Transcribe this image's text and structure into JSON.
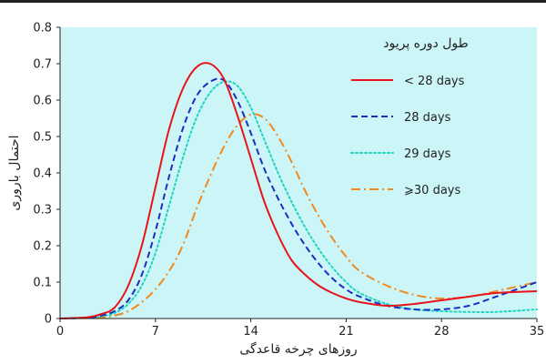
{
  "chart_data": {
    "type": "line",
    "title": "",
    "xlabel": "روزهای چرخه قاعدگی",
    "ylabel": "احتمال باروری",
    "xlim": [
      0,
      35
    ],
    "ylim": [
      0,
      0.8
    ],
    "x_ticks": [
      0,
      7,
      14,
      21,
      28,
      35
    ],
    "x_tick_labels": [
      "0",
      "7",
      "14",
      "21",
      "28",
      "35"
    ],
    "y_ticks": [
      0,
      0.1,
      0.2,
      0.3,
      0.4,
      0.5,
      0.6,
      0.7,
      0.8
    ],
    "y_tick_labels": [
      "0",
      "0.1",
      "0.2",
      "0.3",
      "0.4",
      "0.5",
      "0.6",
      "0.7",
      "0.8"
    ],
    "grid": false,
    "background_color": "#ccf5f8",
    "legend": {
      "title": "طول دوره پریود",
      "placement": "top-right"
    },
    "series": [
      {
        "name": "< 28 days",
        "color": "#e8141b",
        "dash": "solid",
        "x": [
          0,
          2,
          3,
          4,
          5,
          6,
          7,
          8,
          9,
          10,
          11,
          12,
          13,
          14,
          15,
          16,
          17,
          18,
          19,
          20,
          21,
          22,
          24,
          26,
          28,
          30,
          32,
          35
        ],
        "y": [
          0,
          0.003,
          0.012,
          0.03,
          0.09,
          0.2,
          0.36,
          0.52,
          0.63,
          0.69,
          0.7,
          0.66,
          0.56,
          0.44,
          0.32,
          0.23,
          0.16,
          0.12,
          0.09,
          0.07,
          0.055,
          0.045,
          0.035,
          0.04,
          0.05,
          0.06,
          0.07,
          0.075
        ]
      },
      {
        "name": "28 days",
        "color": "#1a2fc2",
        "dash": "dashed",
        "x": [
          0,
          2,
          3,
          4,
          5,
          6,
          7,
          8,
          9,
          10,
          11,
          12,
          13,
          14,
          15,
          16,
          17,
          18,
          19,
          20,
          21,
          22,
          24,
          26,
          28,
          30,
          32,
          35
        ],
        "y": [
          0,
          0.002,
          0.008,
          0.02,
          0.05,
          0.12,
          0.24,
          0.39,
          0.52,
          0.61,
          0.65,
          0.655,
          0.6,
          0.51,
          0.41,
          0.33,
          0.26,
          0.2,
          0.15,
          0.11,
          0.08,
          0.06,
          0.035,
          0.025,
          0.025,
          0.035,
          0.06,
          0.1
        ]
      },
      {
        "name": "29 days",
        "color": "#1ed6c0",
        "dash": "dotted",
        "x": [
          0,
          2,
          3,
          4,
          5,
          6,
          7,
          8,
          9,
          10,
          11,
          12,
          13,
          14,
          15,
          16,
          17,
          18,
          19,
          20,
          21,
          22,
          24,
          26,
          28,
          30,
          32,
          35
        ],
        "y": [
          0,
          0.002,
          0.006,
          0.015,
          0.04,
          0.09,
          0.18,
          0.31,
          0.44,
          0.55,
          0.62,
          0.65,
          0.64,
          0.58,
          0.49,
          0.4,
          0.32,
          0.25,
          0.19,
          0.14,
          0.1,
          0.07,
          0.04,
          0.025,
          0.02,
          0.018,
          0.018,
          0.025
        ]
      },
      {
        "name": "⩾30 days",
        "color": "#f08a1e",
        "dash": "dashdot",
        "x": [
          0,
          2,
          3,
          4,
          5,
          6,
          7,
          8,
          9,
          10,
          11,
          12,
          13,
          14,
          15,
          16,
          17,
          18,
          19,
          20,
          21,
          22,
          24,
          26,
          28,
          30,
          32,
          35
        ],
        "y": [
          0,
          0.001,
          0.003,
          0.008,
          0.02,
          0.045,
          0.08,
          0.13,
          0.2,
          0.3,
          0.39,
          0.47,
          0.53,
          0.56,
          0.55,
          0.5,
          0.43,
          0.35,
          0.28,
          0.22,
          0.17,
          0.13,
          0.09,
          0.065,
          0.055,
          0.06,
          0.075,
          0.1
        ]
      }
    ]
  }
}
